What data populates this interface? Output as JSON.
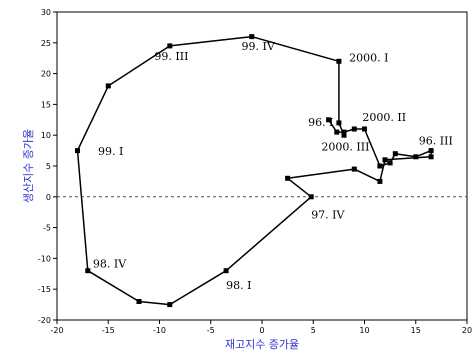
{
  "chart_data": {
    "type": "line",
    "title": "",
    "xlabel": "재고지수 증가율",
    "ylabel": "생산지수 증가율",
    "xlim": [
      -20,
      20
    ],
    "ylim": [
      -20,
      30
    ],
    "x_ticks": [
      -20,
      -15,
      -10,
      -5,
      0,
      5,
      10,
      15,
      20
    ],
    "y_ticks": [
      -20,
      -15,
      -10,
      -5,
      0,
      5,
      10,
      15,
      20,
      25,
      30
    ],
    "x_tick_labels": [
      "-20",
      "-15",
      "-10",
      "-5",
      "0",
      "5",
      "10",
      "15",
      "20"
    ],
    "y_tick_labels": [
      "-20",
      "-15",
      "-10",
      "-5",
      "0",
      "5",
      "10",
      "15",
      "20",
      "25",
      "30"
    ],
    "zero_line": "dashed",
    "grid": false,
    "legend": "none",
    "colors": {
      "line": "#000000",
      "axis_title": "#3333cc",
      "zero_line": "#555555"
    },
    "series": [
      {
        "points": [
          {
            "x": 6.5,
            "y": 12.5
          },
          {
            "x": 7.3,
            "y": 10.5
          },
          {
            "x": 8.0,
            "y": 10.5
          },
          {
            "x": 9.0,
            "y": 11.0
          },
          {
            "x": 10.0,
            "y": 11.0
          },
          {
            "x": 11.5,
            "y": 5.0
          },
          {
            "x": 12.5,
            "y": 5.5
          },
          {
            "x": 13.0,
            "y": 7.0
          },
          {
            "x": 15.0,
            "y": 6.5
          },
          {
            "x": 16.5,
            "y": 7.5
          },
          {
            "x": 16.5,
            "y": 6.5
          },
          {
            "x": 12.0,
            "y": 6.0
          },
          {
            "x": 11.5,
            "y": 2.5
          },
          {
            "x": 9.0,
            "y": 4.5
          },
          {
            "x": 2.5,
            "y": 3.0
          },
          {
            "x": 4.8,
            "y": 0.0
          },
          {
            "x": -3.5,
            "y": -12.0
          },
          {
            "x": -9.0,
            "y": -17.5
          },
          {
            "x": -12.0,
            "y": -17.0
          },
          {
            "x": -17.0,
            "y": -12.0
          },
          {
            "x": -18.0,
            "y": 7.5
          },
          {
            "x": -15.0,
            "y": 18.0
          },
          {
            "x": -9.0,
            "y": 24.5
          },
          {
            "x": -1.0,
            "y": 26.0
          },
          {
            "x": 7.5,
            "y": 22.0
          },
          {
            "x": 7.5,
            "y": 12.0
          },
          {
            "x": 8.0,
            "y": 10.0
          }
        ]
      }
    ],
    "annotations": [
      {
        "text": "96. I",
        "x": 4.5,
        "y": 11.5
      },
      {
        "text": "2000. II",
        "x": 9.8,
        "y": 12.3
      },
      {
        "text": "2000. III",
        "x": 5.8,
        "y": 7.5
      },
      {
        "text": "96. III",
        "x": 15.3,
        "y": 8.5
      },
      {
        "text": "97. IV",
        "x": 4.8,
        "y": -3.5
      },
      {
        "text": "98. I",
        "x": -3.5,
        "y": -15.0
      },
      {
        "text": "98. IV",
        "x": -16.5,
        "y": -11.5
      },
      {
        "text": "99. I",
        "x": -16.0,
        "y": 6.8
      },
      {
        "text": "99. III",
        "x": -10.5,
        "y": 22.2
      },
      {
        "text": "99. IV",
        "x": -2.0,
        "y": 23.8
      },
      {
        "text": "2000. I",
        "x": 8.5,
        "y": 22.0
      }
    ]
  }
}
